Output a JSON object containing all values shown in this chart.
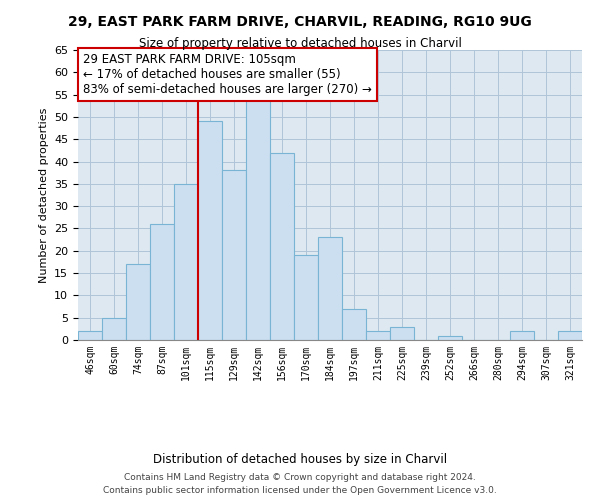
{
  "title": "29, EAST PARK FARM DRIVE, CHARVIL, READING, RG10 9UG",
  "subtitle": "Size of property relative to detached houses in Charvil",
  "xlabel": "Distribution of detached houses by size in Charvil",
  "ylabel": "Number of detached properties",
  "footer_line1": "Contains HM Land Registry data © Crown copyright and database right 2024.",
  "footer_line2": "Contains public sector information licensed under the Open Government Licence v3.0.",
  "categories": [
    "46sqm",
    "60sqm",
    "74sqm",
    "87sqm",
    "101sqm",
    "115sqm",
    "129sqm",
    "142sqm",
    "156sqm",
    "170sqm",
    "184sqm",
    "197sqm",
    "211sqm",
    "225sqm",
    "239sqm",
    "252sqm",
    "266sqm",
    "280sqm",
    "294sqm",
    "307sqm",
    "321sqm"
  ],
  "values": [
    2,
    5,
    17,
    26,
    35,
    49,
    38,
    54,
    42,
    19,
    23,
    7,
    2,
    3,
    0,
    1,
    0,
    0,
    2,
    0,
    2
  ],
  "bar_color": "#ccdff0",
  "bar_edge_color": "#7ab4d4",
  "highlight_index": 5,
  "highlight_color": "#cc0000",
  "annotation_title": "29 EAST PARK FARM DRIVE: 105sqm",
  "annotation_line1": "← 17% of detached houses are smaller (55)",
  "annotation_line2": "83% of semi-detached houses are larger (270) →",
  "annotation_box_color": "#ffffff",
  "annotation_box_edge_color": "#cc0000",
  "bg_color": "#dde8f0",
  "ylim": [
    0,
    65
  ],
  "yticks": [
    0,
    5,
    10,
    15,
    20,
    25,
    30,
    35,
    40,
    45,
    50,
    55,
    60,
    65
  ]
}
